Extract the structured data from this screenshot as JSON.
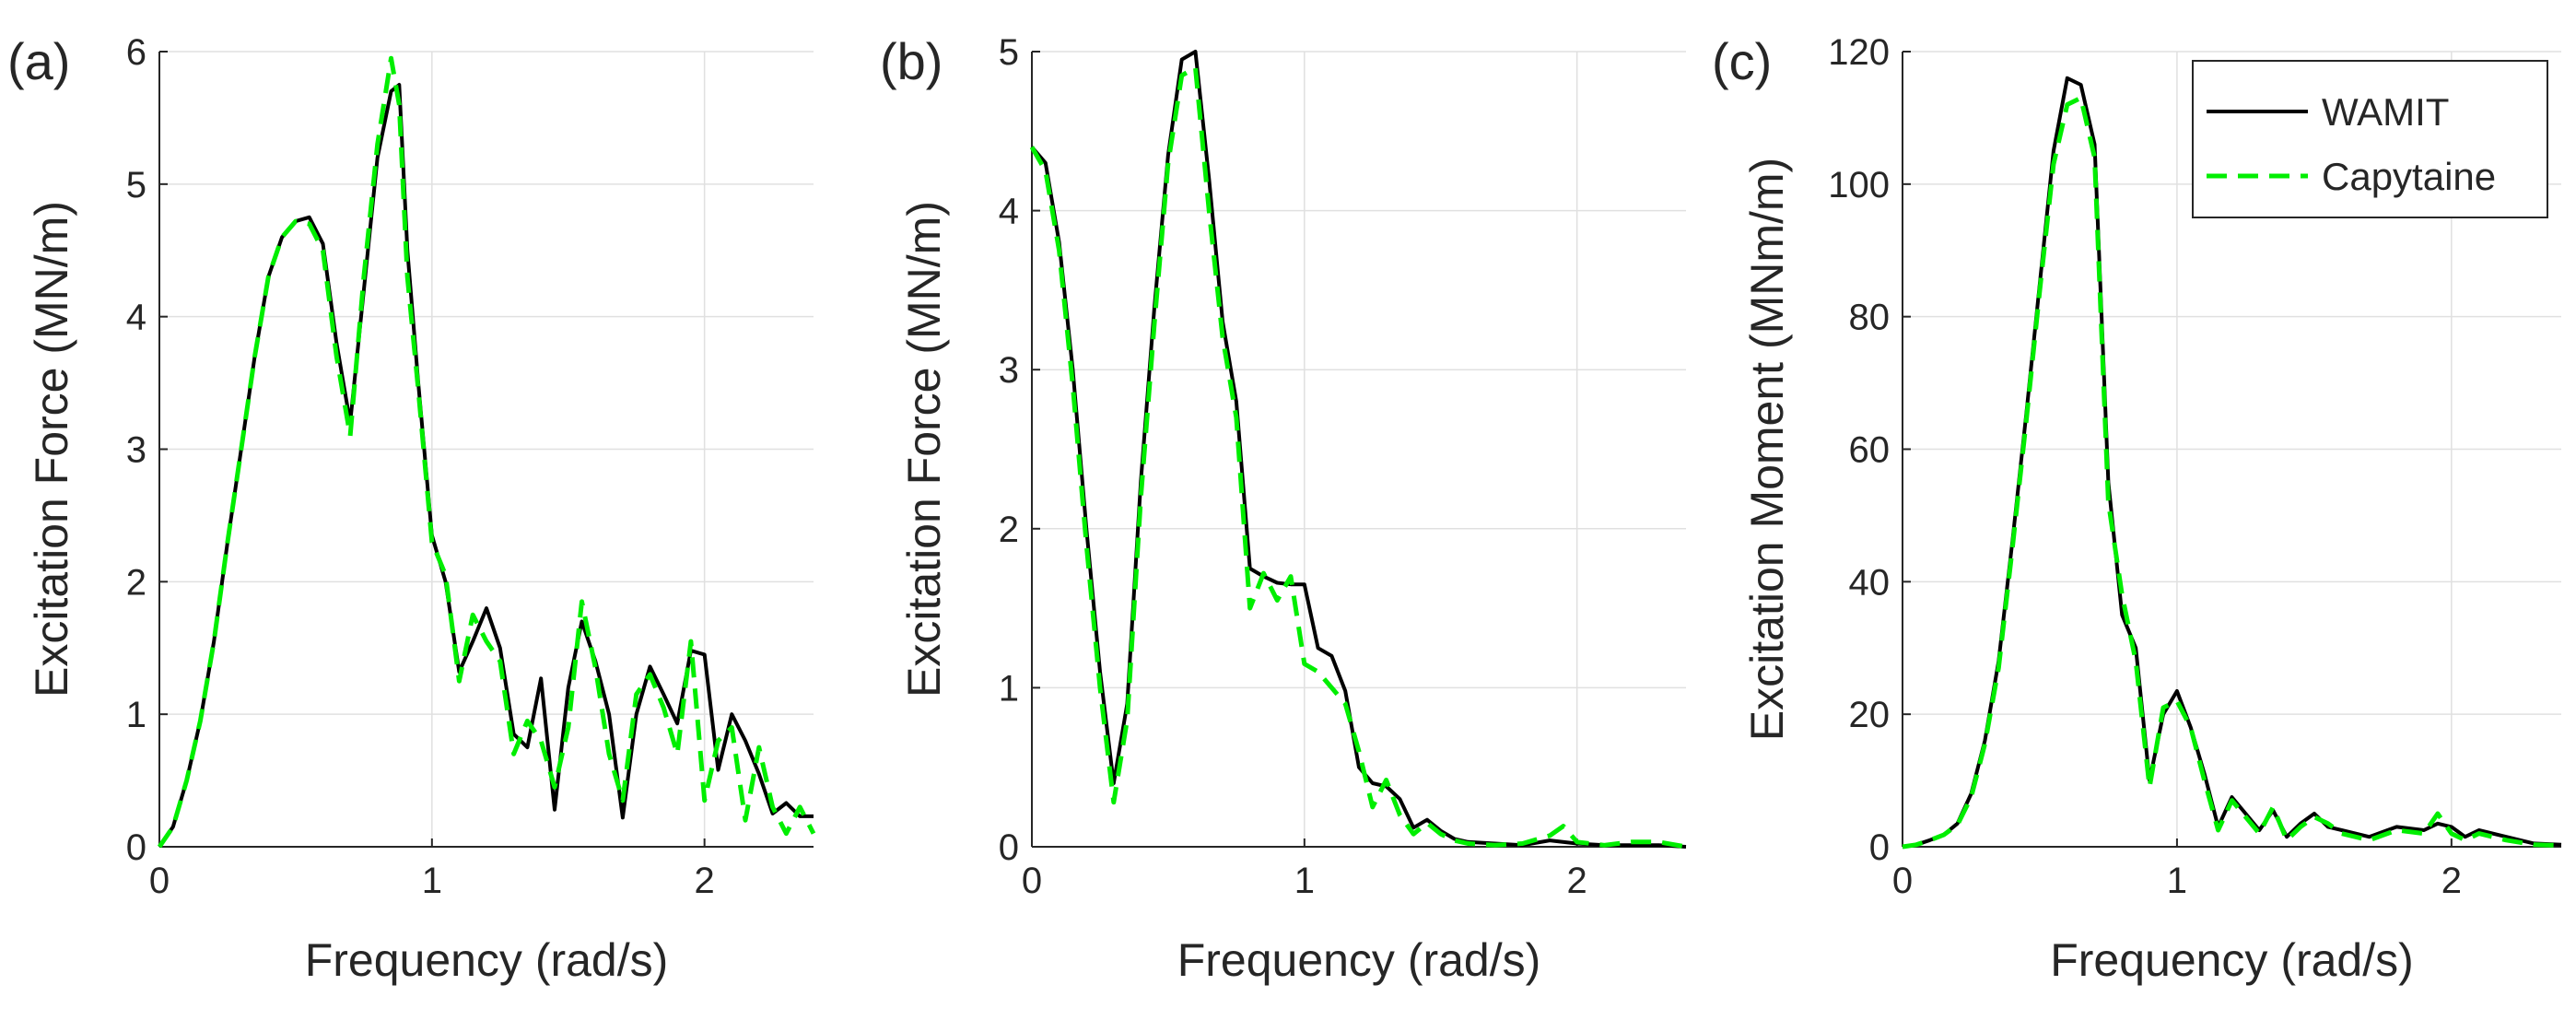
{
  "colors": {
    "wamit": "#000000",
    "capytaine": "#00ee00",
    "grid": "#e0e0e0",
    "axis": "#262626"
  },
  "legend": {
    "placement": "top-right",
    "panel": 2,
    "items": [
      "WAMIT",
      "Capytaine"
    ]
  },
  "chart_data": [
    {
      "type": "line",
      "panel_label": "(a)",
      "xlabel": "Frequency (rad/s)",
      "ylabel": "Excitation Force (MN/m)",
      "xlim": [
        0,
        2.4
      ],
      "ylim": [
        0,
        6
      ],
      "xticks": [
        0,
        1,
        2
      ],
      "yticks": [
        0,
        1,
        2,
        3,
        4,
        5,
        6
      ],
      "grid": true,
      "series": [
        {
          "name": "WAMIT",
          "style": "solid",
          "x": [
            0,
            0.05,
            0.1,
            0.15,
            0.2,
            0.25,
            0.3,
            0.35,
            0.4,
            0.45,
            0.5,
            0.55,
            0.6,
            0.65,
            0.7,
            0.75,
            0.8,
            0.85,
            0.88,
            0.91,
            0.95,
            1.0,
            1.05,
            1.1,
            1.15,
            1.2,
            1.25,
            1.3,
            1.35,
            1.4,
            1.45,
            1.5,
            1.55,
            1.6,
            1.65,
            1.7,
            1.75,
            1.8,
            1.85,
            1.9,
            1.95,
            2.0,
            2.05,
            2.1,
            2.15,
            2.2,
            2.25,
            2.3,
            2.35,
            2.4
          ],
          "y": [
            0.0,
            0.15,
            0.5,
            0.95,
            1.55,
            2.3,
            3.0,
            3.7,
            4.3,
            4.6,
            4.72,
            4.75,
            4.55,
            3.8,
            3.2,
            4.2,
            5.2,
            5.7,
            5.75,
            4.5,
            3.5,
            2.35,
            2.0,
            1.32,
            1.55,
            1.8,
            1.5,
            0.85,
            0.75,
            1.27,
            0.28,
            1.2,
            1.7,
            1.4,
            1.0,
            0.22,
            1.0,
            1.36,
            1.15,
            0.93,
            1.48,
            1.45,
            0.58,
            1.0,
            0.8,
            0.55,
            0.25,
            0.33,
            0.23,
            0.23
          ]
        },
        {
          "name": "Capytaine",
          "style": "dashed",
          "x": [
            0,
            0.05,
            0.1,
            0.15,
            0.2,
            0.25,
            0.3,
            0.35,
            0.4,
            0.45,
            0.5,
            0.55,
            0.6,
            0.65,
            0.7,
            0.75,
            0.8,
            0.85,
            0.88,
            0.91,
            0.95,
            1.0,
            1.05,
            1.1,
            1.15,
            1.2,
            1.25,
            1.3,
            1.35,
            1.4,
            1.45,
            1.5,
            1.55,
            1.6,
            1.65,
            1.7,
            1.75,
            1.8,
            1.85,
            1.9,
            1.95,
            2.0,
            2.05,
            2.1,
            2.15,
            2.2,
            2.25,
            2.3,
            2.35,
            2.4
          ],
          "y": [
            0.0,
            0.15,
            0.5,
            0.95,
            1.55,
            2.3,
            3.0,
            3.7,
            4.3,
            4.6,
            4.72,
            4.7,
            4.5,
            3.7,
            3.1,
            4.3,
            5.3,
            5.95,
            5.6,
            4.3,
            3.45,
            2.3,
            2.05,
            1.25,
            1.75,
            1.55,
            1.4,
            0.7,
            0.95,
            0.8,
            0.45,
            0.9,
            1.85,
            1.35,
            0.7,
            0.35,
            1.15,
            1.3,
            1.05,
            0.7,
            1.55,
            0.35,
            0.8,
            0.9,
            0.2,
            0.75,
            0.3,
            0.1,
            0.3,
            0.1
          ]
        }
      ]
    },
    {
      "type": "line",
      "panel_label": "(b)",
      "xlabel": "Frequency (rad/s)",
      "ylabel": "Excitation Force (MN/m)",
      "xlim": [
        0,
        2.4
      ],
      "ylim": [
        0,
        5
      ],
      "xticks": [
        0,
        1,
        2
      ],
      "yticks": [
        0,
        1,
        2,
        3,
        4,
        5
      ],
      "grid": true,
      "series": [
        {
          "name": "WAMIT",
          "style": "solid",
          "x": [
            0,
            0.05,
            0.1,
            0.15,
            0.2,
            0.25,
            0.3,
            0.35,
            0.4,
            0.45,
            0.5,
            0.55,
            0.6,
            0.65,
            0.7,
            0.75,
            0.8,
            0.85,
            0.9,
            0.95,
            1.0,
            1.05,
            1.1,
            1.15,
            1.2,
            1.25,
            1.3,
            1.35,
            1.4,
            1.45,
            1.5,
            1.55,
            1.6,
            1.7,
            1.8,
            1.9,
            2.0,
            2.1,
            2.2,
            2.3,
            2.4
          ],
          "y": [
            4.4,
            4.3,
            3.8,
            3.0,
            2.0,
            1.1,
            0.4,
            0.9,
            2.3,
            3.4,
            4.35,
            4.95,
            5.0,
            4.2,
            3.3,
            2.8,
            1.75,
            1.7,
            1.66,
            1.65,
            1.65,
            1.25,
            1.2,
            0.98,
            0.5,
            0.4,
            0.38,
            0.3,
            0.12,
            0.17,
            0.1,
            0.05,
            0.03,
            0.02,
            0.01,
            0.04,
            0.02,
            0.01,
            0.01,
            0.01,
            0.0
          ]
        },
        {
          "name": "Capytaine",
          "style": "dashed",
          "x": [
            0,
            0.05,
            0.1,
            0.15,
            0.2,
            0.25,
            0.3,
            0.35,
            0.4,
            0.45,
            0.5,
            0.55,
            0.6,
            0.65,
            0.7,
            0.75,
            0.8,
            0.85,
            0.9,
            0.95,
            1.0,
            1.05,
            1.1,
            1.15,
            1.2,
            1.25,
            1.3,
            1.35,
            1.4,
            1.45,
            1.5,
            1.55,
            1.6,
            1.7,
            1.8,
            1.9,
            1.95,
            2.0,
            2.1,
            2.2,
            2.3,
            2.4
          ],
          "y": [
            4.4,
            4.25,
            3.75,
            2.9,
            1.9,
            1.0,
            0.28,
            0.8,
            2.2,
            3.3,
            4.3,
            4.85,
            4.9,
            4.0,
            3.2,
            2.7,
            1.5,
            1.72,
            1.55,
            1.7,
            1.15,
            1.1,
            1.0,
            0.9,
            0.6,
            0.25,
            0.42,
            0.2,
            0.08,
            0.15,
            0.08,
            0.04,
            0.02,
            0.01,
            0.02,
            0.07,
            0.13,
            0.03,
            0.01,
            0.03,
            0.03,
            0.0
          ]
        }
      ]
    },
    {
      "type": "line",
      "panel_label": "(c)",
      "xlabel": "Frequency (rad/s)",
      "ylabel": "Excitation Moment (MNm/m)",
      "xlim": [
        0,
        2.4
      ],
      "ylim": [
        0,
        120
      ],
      "xticks": [
        0,
        1,
        2
      ],
      "yticks": [
        0,
        20,
        40,
        60,
        80,
        100,
        120
      ],
      "grid": true,
      "series": [
        {
          "name": "WAMIT",
          "style": "solid",
          "x": [
            0,
            0.05,
            0.1,
            0.15,
            0.2,
            0.25,
            0.3,
            0.35,
            0.4,
            0.45,
            0.5,
            0.55,
            0.6,
            0.65,
            0.7,
            0.75,
            0.8,
            0.85,
            0.9,
            0.95,
            1.0,
            1.05,
            1.1,
            1.15,
            1.2,
            1.25,
            1.3,
            1.35,
            1.4,
            1.45,
            1.5,
            1.55,
            1.6,
            1.7,
            1.8,
            1.9,
            1.95,
            2.0,
            2.05,
            2.1,
            2.2,
            2.3,
            2.4
          ],
          "y": [
            0,
            0.3,
            1.0,
            1.8,
            3.5,
            8.0,
            16.0,
            28.0,
            46.0,
            65.0,
            85.0,
            105.0,
            116.0,
            115.0,
            106.0,
            55.0,
            35.0,
            30.0,
            10.0,
            20.0,
            23.5,
            18.0,
            11.0,
            3.0,
            7.5,
            5.0,
            2.5,
            5.5,
            1.5,
            3.5,
            5.0,
            3.0,
            2.5,
            1.5,
            3.0,
            2.5,
            3.5,
            3.0,
            1.5,
            2.5,
            1.5,
            0.5,
            0.3
          ]
        },
        {
          "name": "Capytaine",
          "style": "dashed",
          "x": [
            0,
            0.05,
            0.1,
            0.15,
            0.2,
            0.25,
            0.3,
            0.35,
            0.4,
            0.45,
            0.5,
            0.55,
            0.6,
            0.65,
            0.7,
            0.75,
            0.8,
            0.85,
            0.9,
            0.95,
            1.0,
            1.05,
            1.1,
            1.15,
            1.2,
            1.25,
            1.3,
            1.35,
            1.4,
            1.45,
            1.5,
            1.55,
            1.6,
            1.7,
            1.8,
            1.9,
            1.95,
            2.0,
            2.05,
            2.1,
            2.2,
            2.3,
            2.4
          ],
          "y": [
            0,
            0.3,
            1.0,
            1.8,
            3.3,
            7.5,
            15.5,
            27.0,
            45.0,
            64.0,
            84.0,
            103.0,
            112.0,
            113.0,
            104.0,
            52.0,
            38.0,
            28.0,
            9.0,
            21.0,
            22.0,
            18.0,
            10.0,
            2.5,
            7.0,
            4.5,
            2.0,
            6.0,
            1.0,
            3.0,
            4.5,
            3.5,
            2.0,
            1.0,
            2.5,
            2.0,
            5.0,
            2.0,
            1.0,
            2.0,
            1.0,
            0.3,
            0.2
          ]
        }
      ]
    }
  ]
}
